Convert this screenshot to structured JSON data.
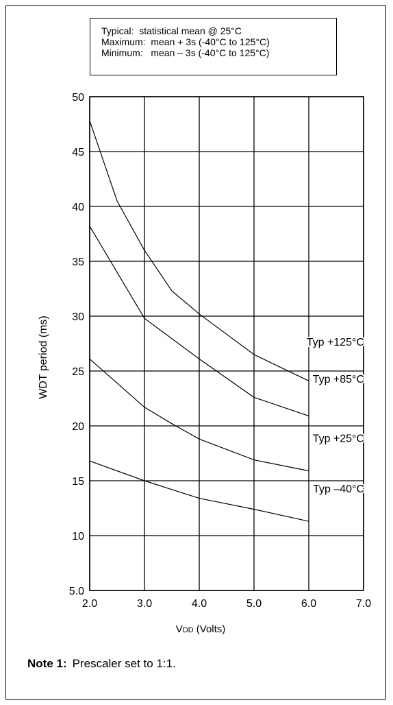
{
  "legend": {
    "lines": [
      "Typical:  statistical mean @ 25°C",
      "Maximum:  mean + 3s (-40°C to 125°C)",
      "Minimum:   mean – 3s (-40°C to 125°C)"
    ]
  },
  "note": {
    "label": "Note  1:",
    "text": "Prescaler set to 1:1."
  },
  "chart_data": {
    "type": "line",
    "title": "",
    "xlabel": "VDD (Volts)",
    "xlabel_main": "V",
    "xlabel_sub": "DD",
    "xlabel_rest": " (Volts)",
    "ylabel": "WDT period (ms)",
    "xlim": [
      2.0,
      7.0
    ],
    "ylim": [
      5.0,
      50
    ],
    "x_ticks": [
      2.0,
      3.0,
      4.0,
      5.0,
      6.0,
      7.0
    ],
    "x_tick_labels": [
      "2.0",
      "3.0",
      "4.0",
      "5.0",
      "6.0",
      "7.0"
    ],
    "y_ticks": [
      5,
      10,
      15,
      20,
      25,
      30,
      35,
      40,
      45,
      50
    ],
    "y_tick_labels": [
      "5.0",
      "10",
      "15",
      "20",
      "25",
      "30",
      "35",
      "40",
      "45",
      "50"
    ],
    "grid": true,
    "series": [
      {
        "name": "Typ +125°C",
        "x": [
          2.0,
          2.5,
          3.0,
          3.5,
          4.0,
          5.0,
          6.0
        ],
        "y": [
          47.8,
          40.5,
          36.0,
          32.3,
          30.2,
          26.5,
          24.1
        ]
      },
      {
        "name": "Typ +85°C",
        "x": [
          2.0,
          3.0,
          4.0,
          5.0,
          6.0
        ],
        "y": [
          38.2,
          29.8,
          26.1,
          22.6,
          20.9
        ]
      },
      {
        "name": "Typ +25°C",
        "x": [
          2.0,
          3.0,
          3.5,
          4.0,
          5.0,
          6.0
        ],
        "y": [
          26.1,
          21.7,
          20.2,
          18.8,
          16.9,
          15.9
        ]
      },
      {
        "name": "Typ –40°C",
        "x": [
          2.0,
          3.0,
          4.0,
          5.0,
          6.0
        ],
        "y": [
          16.8,
          15.0,
          13.4,
          12.4,
          11.3
        ]
      }
    ]
  }
}
